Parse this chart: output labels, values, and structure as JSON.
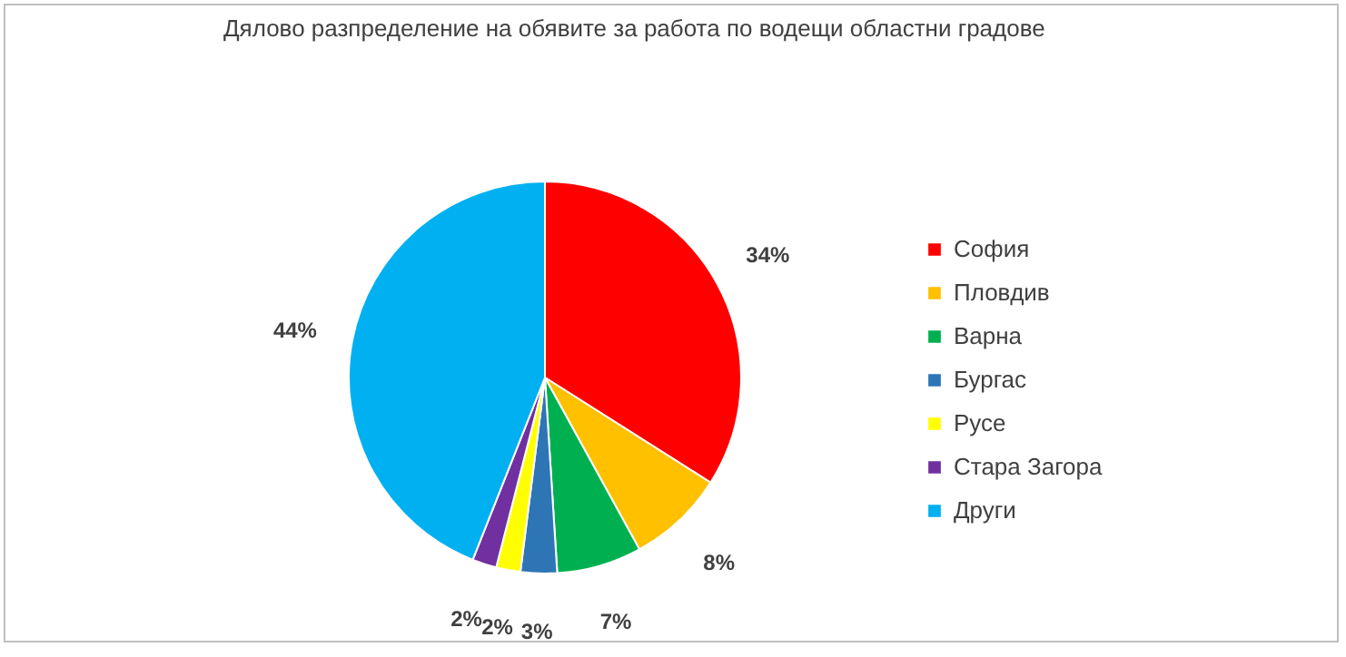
{
  "chart_data": {
    "type": "pie",
    "title": "Дялово разпределение на обявите за работа по водещи областни градове",
    "categories": [
      "София",
      "Пловдив",
      "Варна",
      "Бургас",
      "Русе",
      "Стара Загора",
      "Други"
    ],
    "values": [
      34,
      8,
      7,
      3,
      2,
      2,
      44
    ],
    "value_labels": [
      "34%",
      "8%",
      "7%",
      "3%",
      "2%",
      "2%",
      "44%"
    ],
    "colors": [
      "#ff0000",
      "#ffc000",
      "#00b050",
      "#2e75b6",
      "#ffff00",
      "#7030a0",
      "#00b0f0"
    ],
    "legend": "right"
  }
}
